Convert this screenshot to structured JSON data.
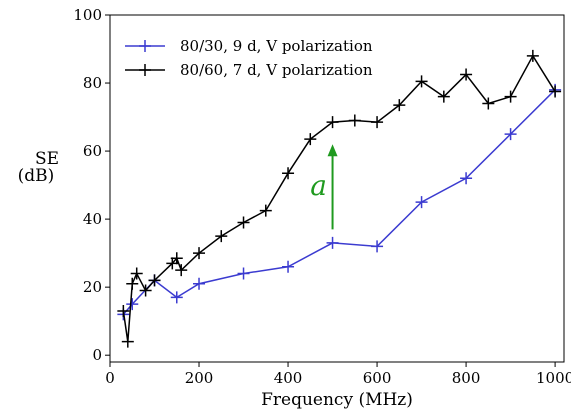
{
  "chart_data": {
    "type": "line",
    "xlabel": "Frequency (MHz)",
    "ylabel_line1": "SE",
    "ylabel_line2": "(dB)",
    "xlim": [
      0,
      1020
    ],
    "ylim": [
      -2,
      100
    ],
    "xticks": [
      0,
      200,
      400,
      600,
      800,
      1000
    ],
    "yticks": [
      0,
      20,
      40,
      60,
      80,
      100
    ],
    "grid": false,
    "legend_position": "top-left",
    "series": [
      {
        "name": "80/30, 9 d, V polarization",
        "color": "#3b3bd0",
        "x": [
          30,
          50,
          100,
          150,
          200,
          300,
          400,
          500,
          600,
          700,
          800,
          900,
          1000
        ],
        "y": [
          12,
          15,
          22,
          17,
          21,
          24,
          26,
          33,
          32,
          45,
          52,
          65,
          78
        ]
      },
      {
        "name": "80/60, 7 d, V polarization",
        "color": "#000000",
        "x": [
          30,
          40,
          50,
          60,
          80,
          100,
          140,
          150,
          160,
          200,
          250,
          300,
          350,
          400,
          450,
          500,
          550,
          600,
          650,
          700,
          750,
          800,
          850,
          900,
          950,
          1000
        ],
        "y": [
          13,
          4,
          21,
          24,
          19,
          22,
          27,
          28.5,
          25,
          30,
          35,
          39,
          42.5,
          53.5,
          63.5,
          68.5,
          69,
          68.5,
          73.5,
          80.5,
          76,
          82.5,
          74,
          76,
          88,
          77.5
        ]
      }
    ],
    "annotation": {
      "text": "a",
      "color": "#1f9a1f",
      "x": 500,
      "y_start": 37,
      "y_end": 62
    }
  }
}
